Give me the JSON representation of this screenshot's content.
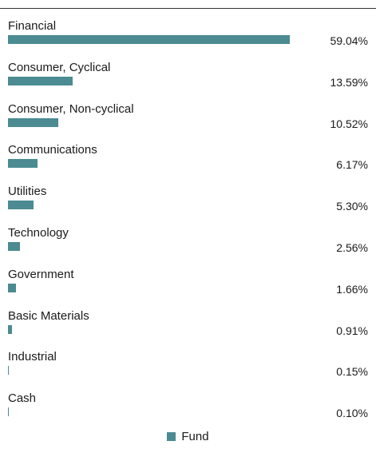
{
  "chart_data": {
    "type": "bar",
    "orientation": "horizontal",
    "categories": [
      "Financial",
      "Consumer, Cyclical",
      "Consumer, Non-cyclical",
      "Communications",
      "Utilities",
      "Technology",
      "Government",
      "Basic Materials",
      "Industrial",
      "Cash"
    ],
    "values": [
      59.04,
      13.59,
      10.52,
      6.17,
      5.3,
      2.56,
      1.66,
      0.91,
      0.15,
      0.1
    ],
    "value_labels": [
      "59.04%",
      "13.59%",
      "10.52%",
      "6.17%",
      "5.30%",
      "2.56%",
      "1.66%",
      "0.91%",
      "0.15%",
      "0.10%"
    ],
    "series": [
      {
        "name": "Fund",
        "color": "#4b8b91"
      }
    ],
    "legend": "bottom-center",
    "grid": false
  }
}
